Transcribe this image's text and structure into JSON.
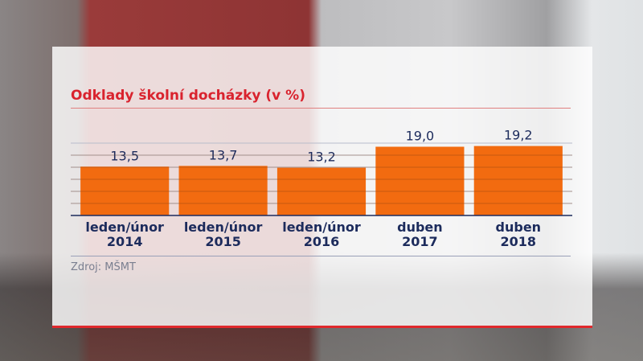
{
  "chart_data": {
    "type": "bar",
    "title": "Odklady školní docházky (v %)",
    "categories": [
      "leden/únor\n2014",
      "leden/únor\n2015",
      "leden/únor\n2016",
      "duben\n2017",
      "duben\n2018"
    ],
    "values": [
      13.5,
      13.7,
      13.2,
      19.0,
      19.2
    ],
    "value_labels": [
      "13,5",
      "13,7",
      "13,2",
      "19,0",
      "19,2"
    ],
    "color": "#f26b10",
    "ylim": [
      0,
      20
    ],
    "source": "Zdroj: MŠMT"
  }
}
